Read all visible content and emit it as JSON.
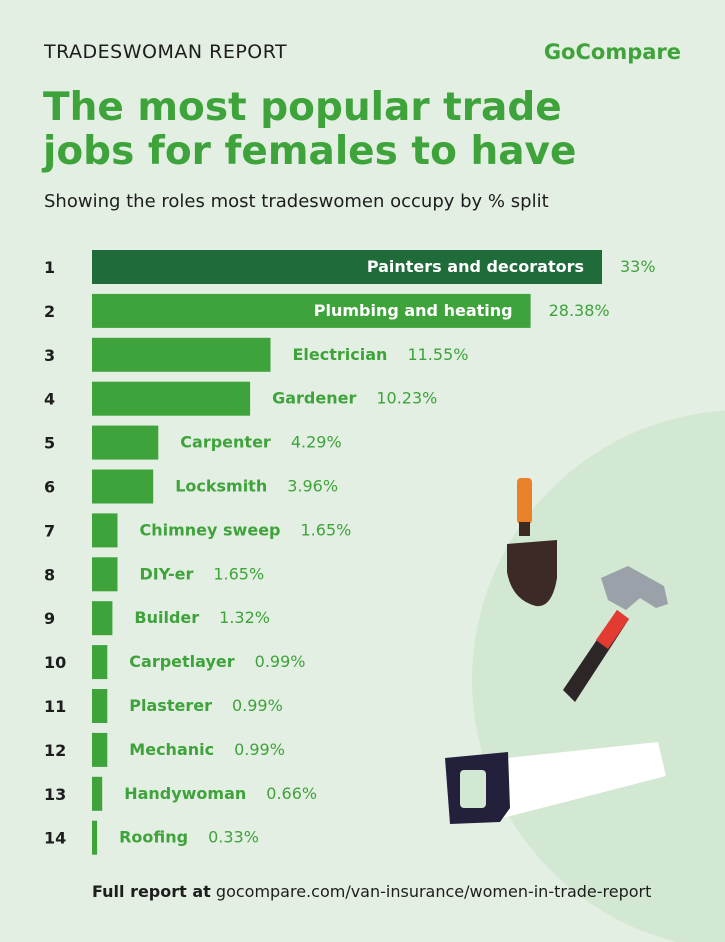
{
  "header": {
    "report_label": "TRADESWOMAN REPORT",
    "brand": "GoCompare"
  },
  "title": "The most popular trade jobs for females to have",
  "subtitle": "Showing the roles most tradeswomen occupy by % split",
  "footer": {
    "prefix": "Full report at",
    "url": "gocompare.com/van-insurance/women-in-trade-report"
  },
  "colors": {
    "accent": "#3ea33a",
    "highlight": "#1f6b3a",
    "text": "#1d1d1d",
    "background": "#e4efe3"
  },
  "chart_data": {
    "type": "bar",
    "orientation": "horizontal",
    "title": "The most popular trade jobs for females to have",
    "subtitle": "Showing the roles most tradeswomen occupy by % split",
    "ranks": [
      "1",
      "2",
      "3",
      "4",
      "5",
      "6",
      "7",
      "8",
      "9",
      "10",
      "11",
      "12",
      "13",
      "14"
    ],
    "categories": [
      "Painters and decorators",
      "Plumbing and heating",
      "Electrician",
      "Gardener",
      "Carpenter",
      "Locksmith",
      "Chimney sweep",
      "DIY-er",
      "Builder",
      "Carpetlayer",
      "Plasterer",
      "Mechanic",
      "Handywoman",
      "Roofing"
    ],
    "values": [
      33,
      28.38,
      11.55,
      10.23,
      4.29,
      3.96,
      1.65,
      1.65,
      1.32,
      0.99,
      0.99,
      0.99,
      0.66,
      0.33
    ],
    "value_labels": [
      "33%",
      "28.38%",
      "11.55%",
      "10.23%",
      "4.29%",
      "3.96%",
      "1.65%",
      "1.65%",
      "1.32%",
      "0.99%",
      "0.99%",
      "0.99%",
      "0.66%",
      "0.33%"
    ],
    "grid": false,
    "legend": "none"
  }
}
